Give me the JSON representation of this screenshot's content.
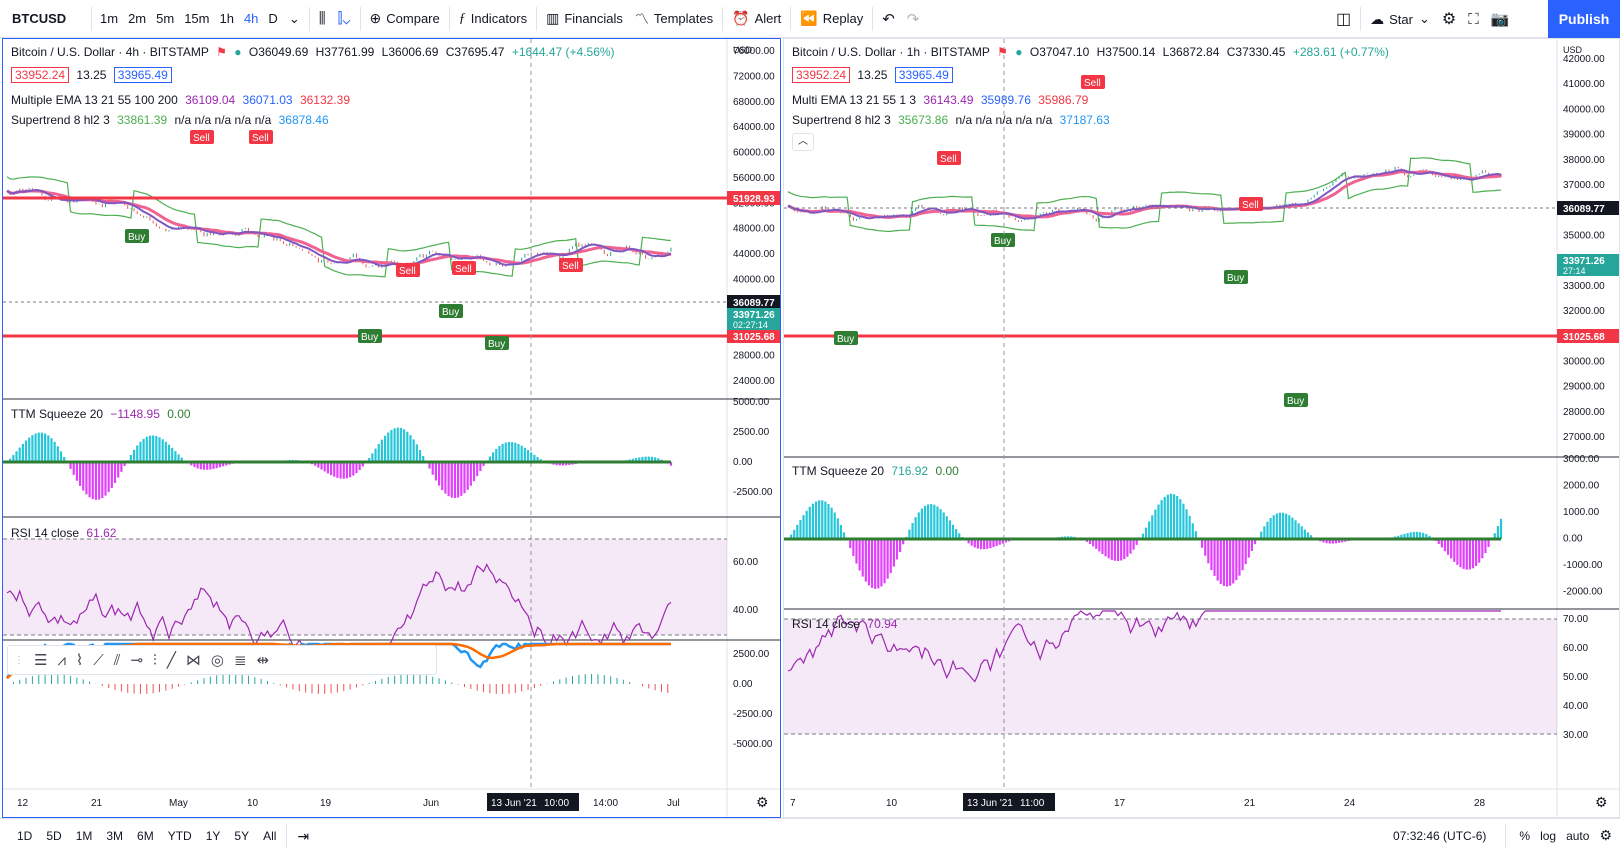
{
  "toolbar": {
    "symbol": "BTCUSD",
    "timeframes": [
      "1m",
      "2m",
      "5m",
      "15m",
      "1h",
      "4h",
      "D"
    ],
    "active_timeframe": "4h",
    "compare": "Compare",
    "indicators": "Indicators",
    "financials": "Financials",
    "templates": "Templates",
    "alert": "Alert",
    "replay": "Replay",
    "star": "Star",
    "publish": "Publish"
  },
  "left": {
    "title": "Bitcoin / U.S. Dollar · 4h · BITSTAMP",
    "ohlc": {
      "o": "O36049.69",
      "h": "H37761.99",
      "l": "L36006.69",
      "c": "C37695.47",
      "chg": "+1644.47 (+4.56%)"
    },
    "bid": "33952.24",
    "spread": "13.25",
    "ask": "33965.49",
    "ema_label": "Multiple EMA 13 21 55 100 200",
    "ema_vals": [
      "36109.04",
      "36071.03",
      "36132.39"
    ],
    "st_label": "Supertrend 8 hl2 3",
    "st_vals": [
      "33861.39",
      "n/a n/a n/a n/a n/a",
      "36878.46"
    ],
    "currency": "USD",
    "price_ticks": [
      "76000.00",
      "72000.00",
      "68000.00",
      "64000.00",
      "60000.00",
      "56000.00",
      "52000.00",
      "48000.00",
      "44000.00",
      "40000.00",
      "36000.00",
      "32000.00",
      "28000.00",
      "24000.00"
    ],
    "line_high": "51928.93",
    "line_low": "31025.68",
    "dashed": "36089.77",
    "last": "33971.26",
    "countdown": "02:27:14",
    "ttm_label": "TTM Squeeze 20",
    "ttm_vals": [
      "−1148.95",
      "0.00"
    ],
    "ttm_ticks": [
      "5000.00",
      "2500.00",
      "0.00",
      "-2500.00"
    ],
    "rsi_label": "RSI 14 close",
    "rsi_val": "61.62",
    "rsi_ticks": [
      "60.00",
      "40.00"
    ],
    "macd_ticks": [
      "2500.00",
      "0.00",
      "-2500.00",
      "-5000.00"
    ],
    "x_ticks": [
      "12",
      "21",
      "May",
      "10",
      "19",
      "Jun",
      "13 Jun '21",
      "10:00",
      "14:00",
      "Jul"
    ],
    "sell": "Sell",
    "buy": "Buy"
  },
  "right": {
    "title": "Bitcoin / U.S. Dollar · 1h · BITSTAMP",
    "ohlc": {
      "o": "O37047.10",
      "h": "H37500.14",
      "l": "L36872.84",
      "c": "C37330.45",
      "chg": "+283.61 (+0.77%)"
    },
    "bid": "33952.24",
    "spread": "13.25",
    "ask": "33965.49",
    "ema_label": "Multi EMA 13 21 55 1 3",
    "ema_vals": [
      "36143.49",
      "35989.76",
      "35986.79"
    ],
    "st_label": "Supertrend 8 hl2 3",
    "st_vals": [
      "35673.86",
      "n/a n/a n/a n/a n/a",
      "37187.63"
    ],
    "currency": "USD",
    "price_ticks": [
      "42000.00",
      "41000.00",
      "40000.00",
      "39000.00",
      "38000.00",
      "37000.00",
      "36000.00",
      "35000.00",
      "34000.00",
      "33000.00",
      "32000.00",
      "31000.00",
      "30000.00",
      "29000.00",
      "28000.00",
      "27000.00"
    ],
    "dashed": "36089.77",
    "last": "33971.26",
    "countdown": "27:14",
    "line_low": "31025.68",
    "ttm_label": "TTM Squeeze 20",
    "ttm_vals": [
      "716.92",
      "0.00"
    ],
    "ttm_ticks": [
      "3000.00",
      "2000.00",
      "1000.00",
      "0.00",
      "-1000.00",
      "-2000.00"
    ],
    "rsi_label": "RSI 14 close",
    "rsi_val": "70.94",
    "rsi_ticks": [
      "70.00",
      "60.00",
      "50.00",
      "40.00",
      "30.00"
    ],
    "x_ticks": [
      "7",
      "10",
      "13 Jun '21",
      "11:00",
      "17",
      "21",
      "24",
      "28"
    ],
    "sell": "Sell",
    "buy": "Buy"
  },
  "bottom": {
    "ranges": [
      "1D",
      "5D",
      "1M",
      "3M",
      "6M",
      "YTD",
      "1Y",
      "5Y",
      "All"
    ],
    "clock": "07:32:46 (UTC-6)",
    "pct": "%",
    "log": "log",
    "auto": "auto"
  },
  "colors": {
    "accent": "#2962ff",
    "red": "#f23645",
    "green": "#4caf50",
    "purple": "#9c27b0"
  }
}
